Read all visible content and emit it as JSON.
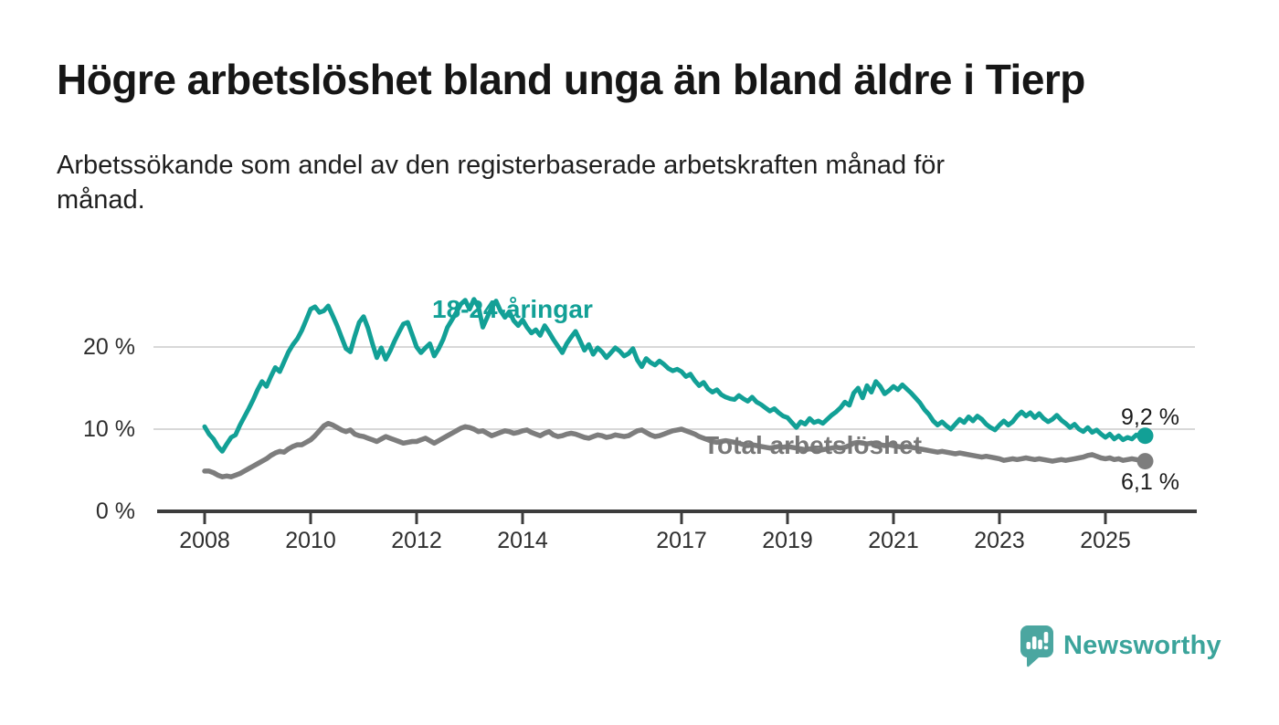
{
  "header": {
    "title": "Högre arbetslöshet bland unga än bland äldre i Tierp",
    "subtitle": "Arbetssökande som andel av den registerbaserade arbetskraften månad för\nmånad."
  },
  "footer": {
    "brand": "Newsworthy",
    "logo_icon": "bar-chart-speech-bubble-icon"
  },
  "colors": {
    "young_series": "#12a096",
    "total_series": "#7d7d7d",
    "gridline": "#d8d8d8",
    "axis": "#3c3c3c",
    "text": "#1b1b1b",
    "brand_teal": "#3ba49b",
    "brand_icon_teal": "#4ba6a0"
  },
  "chart_data": {
    "type": "line",
    "unit": "%",
    "frequency": "monthly",
    "start_year": 2008,
    "points_per_year": 12,
    "grid": "horizontal",
    "ylim": [
      0,
      28
    ],
    "x_ticks": [
      2008,
      2010,
      2012,
      2014,
      2017,
      2019,
      2021,
      2023,
      2025
    ],
    "y_ticks": [
      {
        "value": 0,
        "label": "0 %"
      },
      {
        "value": 10,
        "label": "10 %"
      },
      {
        "value": 20,
        "label": "20 %"
      }
    ],
    "series": [
      {
        "name": "18-24-åringar",
        "color": "#12a096",
        "end_label": "9,2 %",
        "end_value": 9.2,
        "values": [
          10.3,
          9.4,
          8.8,
          7.9,
          7.3,
          8.2,
          9.0,
          9.3,
          10.5,
          11.5,
          12.5,
          13.6,
          14.8,
          15.8,
          15.2,
          16.4,
          17.5,
          17.0,
          18.2,
          19.4,
          20.3,
          21.0,
          22.0,
          23.3,
          24.6,
          24.9,
          24.2,
          24.4,
          25.0,
          23.8,
          22.6,
          21.2,
          19.8,
          19.4,
          21.3,
          23.0,
          23.7,
          22.3,
          20.4,
          18.7,
          19.9,
          18.5,
          19.5,
          20.7,
          21.8,
          22.8,
          23.0,
          21.5,
          20.0,
          19.3,
          19.9,
          20.4,
          18.9,
          19.8,
          20.9,
          22.4,
          23.3,
          24.2,
          25.2,
          25.7,
          24.6,
          25.8,
          24.9,
          22.4,
          23.6,
          24.8,
          25.6,
          24.4,
          23.6,
          24.3,
          23.2,
          22.6,
          23.3,
          22.4,
          21.7,
          22.1,
          21.4,
          22.6,
          21.8,
          20.9,
          20.1,
          19.3,
          20.4,
          21.2,
          21.9,
          20.8,
          19.6,
          20.3,
          19.1,
          19.9,
          19.4,
          18.7,
          19.3,
          19.9,
          19.5,
          18.9,
          19.2,
          19.8,
          18.4,
          17.6,
          18.6,
          18.1,
          17.8,
          18.3,
          17.9,
          17.4,
          17.1,
          17.3,
          17.0,
          16.4,
          16.7,
          15.9,
          15.3,
          15.7,
          14.9,
          14.5,
          14.8,
          14.2,
          13.9,
          13.7,
          13.6,
          14.1,
          13.7,
          13.4,
          13.9,
          13.3,
          13.0,
          12.6,
          12.2,
          12.5,
          12.0,
          11.6,
          11.4,
          10.8,
          10.2,
          10.9,
          10.6,
          11.3,
          10.8,
          11.0,
          10.7,
          11.2,
          11.7,
          12.1,
          12.6,
          13.3,
          12.9,
          14.4,
          15.0,
          13.8,
          15.3,
          14.5,
          15.8,
          15.2,
          14.3,
          14.7,
          15.2,
          14.8,
          15.4,
          14.9,
          14.4,
          13.8,
          13.2,
          12.4,
          11.8,
          11.0,
          10.5,
          10.9,
          10.4,
          10.0,
          10.6,
          11.2,
          10.8,
          11.5,
          11.0,
          11.6,
          11.2,
          10.6,
          10.2,
          9.9,
          10.5,
          11.0,
          10.5,
          10.9,
          11.6,
          12.1,
          11.6,
          12.0,
          11.4,
          11.9,
          11.3,
          10.9,
          11.2,
          11.7,
          11.1,
          10.7,
          10.2,
          10.6,
          10.0,
          9.7,
          10.2,
          9.6,
          9.9,
          9.4,
          9.0,
          9.4,
          8.8,
          9.2,
          8.7,
          9.0,
          8.8,
          9.3,
          9.0,
          9.2
        ]
      },
      {
        "name": "Total arbetslöshet",
        "color": "#7d7d7d",
        "end_label": "6,1 %",
        "end_value": 6.1,
        "values": [
          4.9,
          4.9,
          4.7,
          4.4,
          4.2,
          4.3,
          4.2,
          4.4,
          4.6,
          4.9,
          5.2,
          5.5,
          5.8,
          6.1,
          6.4,
          6.8,
          7.1,
          7.3,
          7.2,
          7.6,
          7.9,
          8.1,
          8.1,
          8.4,
          8.7,
          9.2,
          9.8,
          10.4,
          10.7,
          10.5,
          10.2,
          9.9,
          9.7,
          9.9,
          9.4,
          9.2,
          9.1,
          8.9,
          8.7,
          8.5,
          8.8,
          9.1,
          8.9,
          8.7,
          8.5,
          8.3,
          8.4,
          8.5,
          8.5,
          8.7,
          8.9,
          8.6,
          8.3,
          8.6,
          8.9,
          9.2,
          9.5,
          9.8,
          10.1,
          10.3,
          10.2,
          10.0,
          9.7,
          9.8,
          9.5,
          9.2,
          9.4,
          9.6,
          9.8,
          9.7,
          9.5,
          9.6,
          9.8,
          9.9,
          9.6,
          9.4,
          9.2,
          9.5,
          9.7,
          9.3,
          9.1,
          9.2,
          9.4,
          9.5,
          9.4,
          9.2,
          9.0,
          8.9,
          9.1,
          9.3,
          9.2,
          9.0,
          9.1,
          9.3,
          9.2,
          9.1,
          9.2,
          9.5,
          9.8,
          9.9,
          9.6,
          9.3,
          9.1,
          9.2,
          9.4,
          9.6,
          9.8,
          9.9,
          10.0,
          9.8,
          9.6,
          9.4,
          9.1,
          8.9,
          8.7,
          8.5,
          8.4,
          8.5,
          8.6,
          8.5,
          8.4,
          8.3,
          8.1,
          8.0,
          8.1,
          8.0,
          7.9,
          7.8,
          7.7,
          7.8,
          7.9,
          7.8,
          7.9,
          7.8,
          7.7,
          7.6,
          7.5,
          7.6,
          7.5,
          7.4,
          7.5,
          7.6,
          7.7,
          7.8,
          7.7,
          7.8,
          8.0,
          8.3,
          8.4,
          8.3,
          8.2,
          8.3,
          8.2,
          8.1,
          8.0,
          8.1,
          8.0,
          7.9,
          7.8,
          7.9,
          7.8,
          7.7,
          7.6,
          7.5,
          7.4,
          7.3,
          7.2,
          7.3,
          7.2,
          7.1,
          7.0,
          7.1,
          7.0,
          6.9,
          6.8,
          6.7,
          6.6,
          6.7,
          6.6,
          6.5,
          6.4,
          6.2,
          6.3,
          6.4,
          6.3,
          6.4,
          6.5,
          6.4,
          6.3,
          6.4,
          6.3,
          6.2,
          6.1,
          6.2,
          6.3,
          6.2,
          6.3,
          6.4,
          6.5,
          6.6,
          6.8,
          6.9,
          6.7,
          6.5,
          6.4,
          6.5,
          6.3,
          6.4,
          6.2,
          6.3,
          6.4,
          6.3,
          6.2,
          6.1
        ]
      }
    ]
  }
}
